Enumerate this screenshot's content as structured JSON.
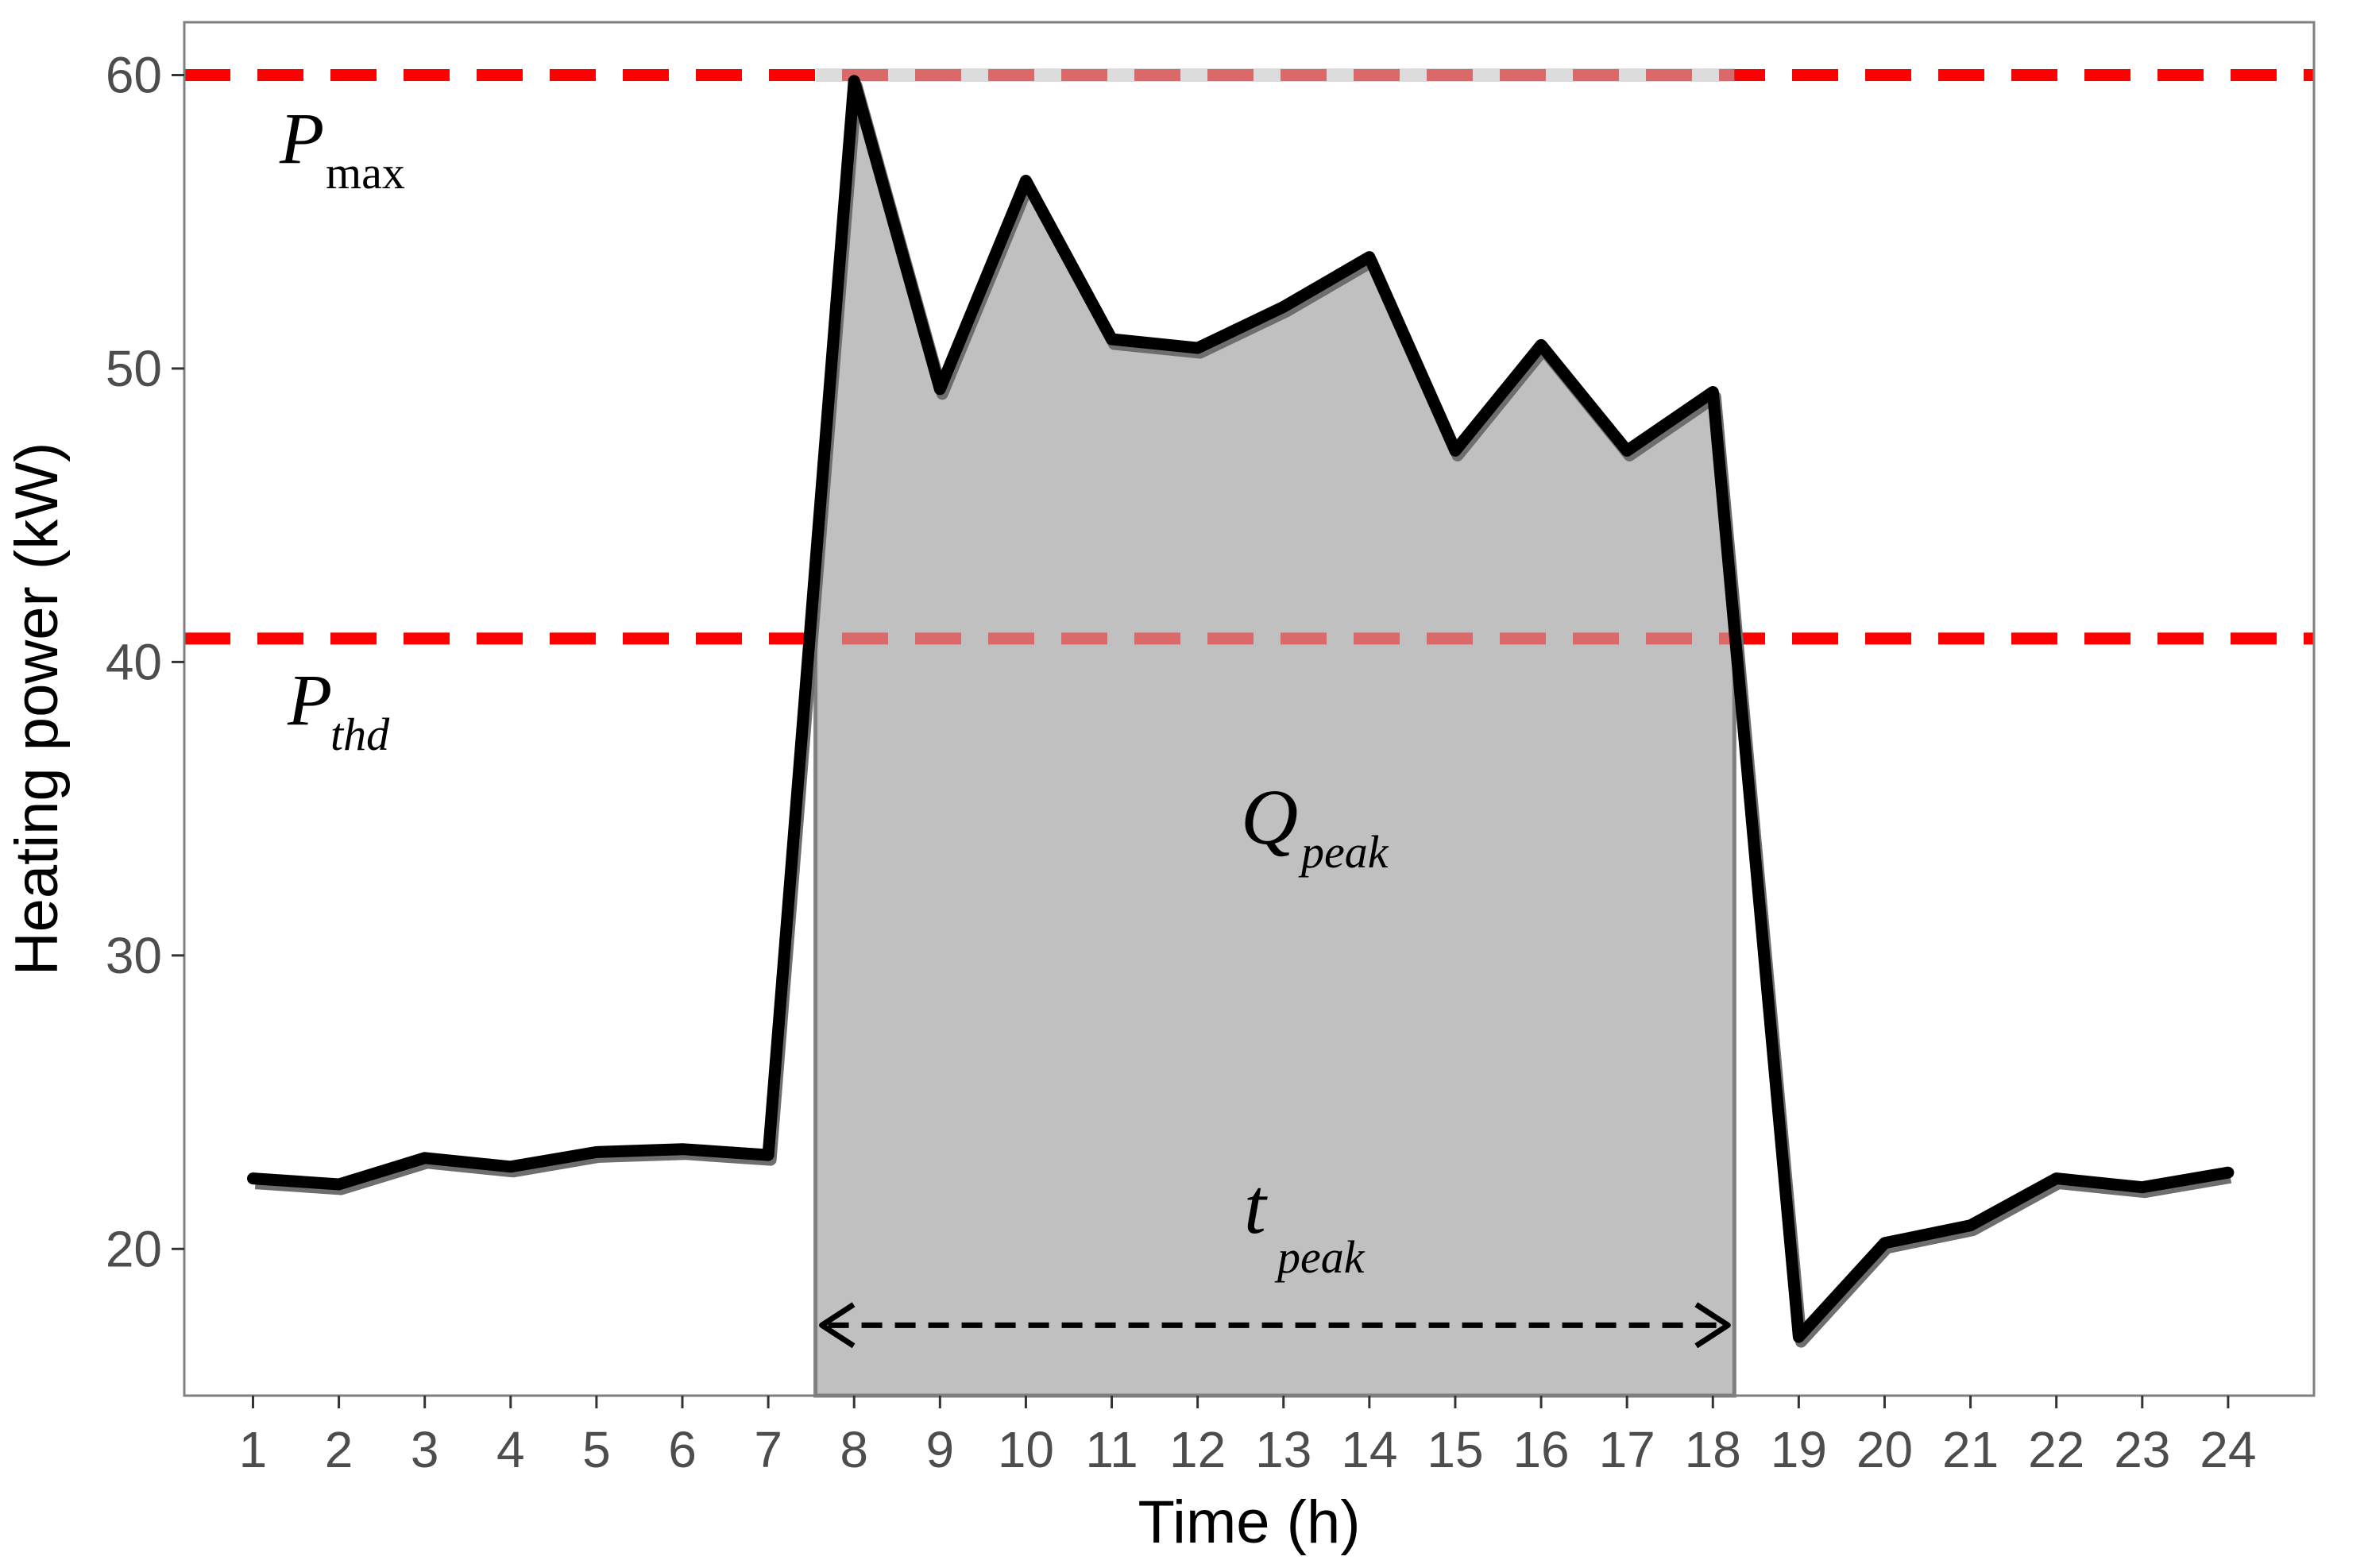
{
  "chart_data": {
    "type": "line",
    "xlabel": "Time (h)",
    "ylabel": "Heating power (kW)",
    "x": [
      1,
      2,
      3,
      4,
      5,
      6,
      7,
      8,
      9,
      10,
      11,
      12,
      13,
      14,
      15,
      16,
      17,
      18,
      19,
      20,
      21,
      22,
      23,
      24
    ],
    "xlim": [
      0.2,
      25.0
    ],
    "ylim": [
      15.0,
      61.8
    ],
    "xticks": [
      "1",
      "2",
      "3",
      "4",
      "5",
      "6",
      "7",
      "8",
      "9",
      "10",
      "11",
      "12",
      "13",
      "14",
      "15",
      "16",
      "17",
      "18",
      "19",
      "20",
      "21",
      "22",
      "23",
      "24"
    ],
    "yticks": [
      "20",
      "30",
      "40",
      "50",
      "60"
    ],
    "grid": false,
    "series": [
      {
        "values": [
          22.4,
          22.2,
          23.1,
          22.8,
          23.3,
          23.4,
          23.2,
          59.8,
          49.3,
          56.4,
          51.0,
          50.7,
          52.1,
          53.8,
          47.2,
          50.8,
          47.2,
          49.2,
          17.0,
          20.2,
          20.8,
          22.4,
          22.1,
          22.6
        ],
        "color": "#000000"
      }
    ],
    "reference_lines": [
      {
        "label_main": "P",
        "label_sub": "max",
        "value": 60.0,
        "color": "#ff0000",
        "style": "dashed"
      },
      {
        "label_main": "P",
        "label_sub": "thd",
        "value": 40.8,
        "color": "#ff0000",
        "style": "dashed"
      }
    ],
    "shaded_region": {
      "label_main": "Q",
      "label_sub": "peak",
      "x_start": 7.55,
      "x_end": 18.25,
      "fill": "#c0c0c0"
    },
    "duration_arrow": {
      "label_main": "t",
      "label_sub": "peak",
      "x_start": 7.55,
      "x_end": 18.25,
      "y": 17.4
    }
  }
}
